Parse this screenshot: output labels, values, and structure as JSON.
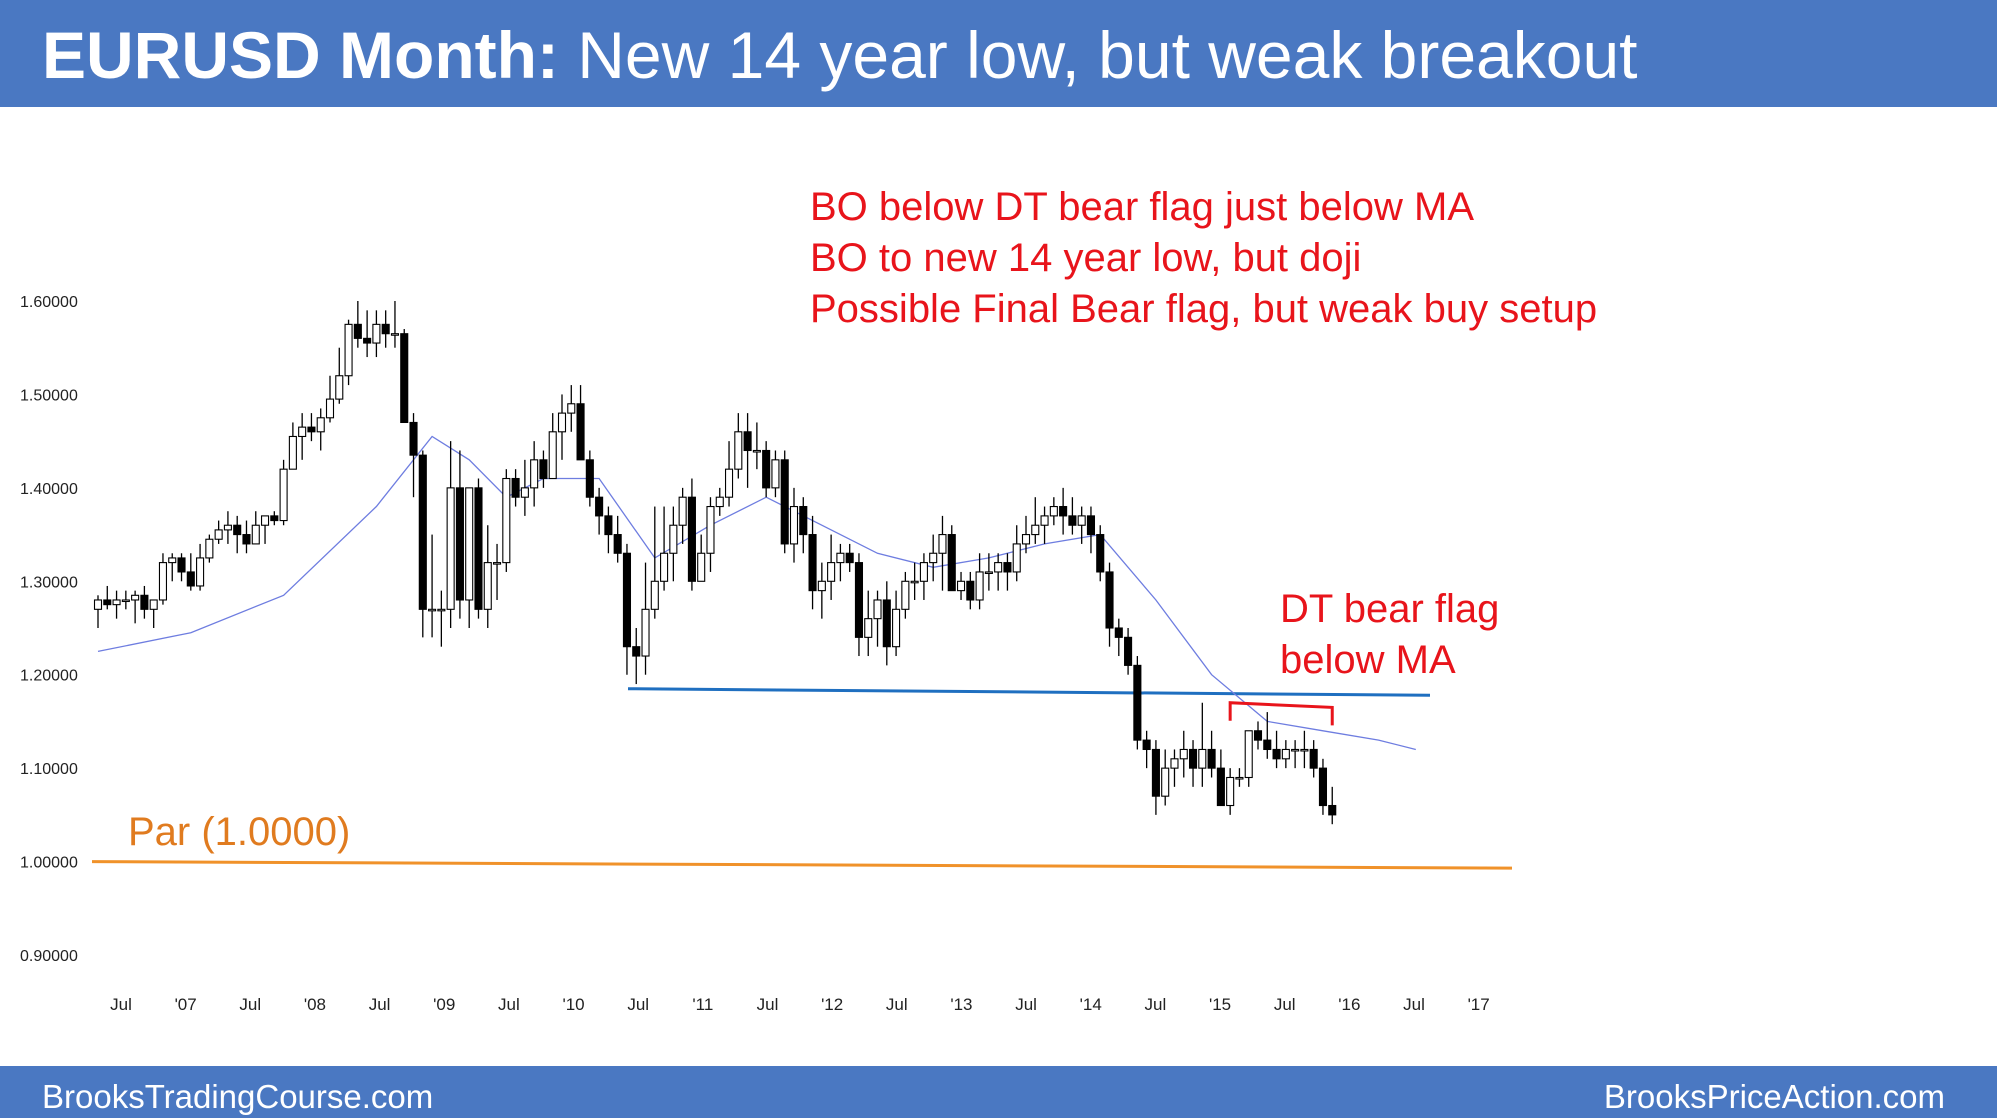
{
  "header": {
    "title_bold": "EURUSD Month:",
    "title_rest": " New 14 year low, but weak breakout"
  },
  "footer": {
    "left": "BrooksTradingCourse.com",
    "right": "BrooksPriceAction.com"
  },
  "colors": {
    "bar": "#4a78c2",
    "annotation": "#e8141b",
    "support": "#1f6fc0",
    "par": "#f0922a",
    "ma": "#6e7de0"
  },
  "annotations": {
    "top": [
      "BO below DT bear flag just below MA",
      "BO to new 14 year low, but doji",
      "Possible Final Bear flag, but weak buy setup"
    ],
    "dt": [
      "DT bear flag",
      "below MA"
    ],
    "par_label": "Par (1.0000)"
  },
  "chart_data": {
    "type": "candlestick",
    "title": "EURUSD Month",
    "y_tick_labels": [
      "1.60000",
      "1.50000",
      "1.40000",
      "1.30000",
      "1.20000",
      "1.10000",
      "1.00000",
      "0.90000"
    ],
    "x_tick_labels": [
      "Jul",
      "'07",
      "Jul",
      "'08",
      "Jul",
      "'09",
      "Jul",
      "'10",
      "Jul",
      "'11",
      "Jul",
      "'12",
      "Jul",
      "'13",
      "Jul",
      "'14",
      "Jul",
      "'15",
      "Jul",
      "'16",
      "Jul",
      "'17"
    ],
    "ylim": [
      0.87,
      1.66
    ],
    "start_month": "2006-05",
    "candles": [
      [
        1.27,
        1.285,
        1.25,
        1.28
      ],
      [
        1.28,
        1.295,
        1.27,
        1.275
      ],
      [
        1.275,
        1.29,
        1.26,
        1.28
      ],
      [
        1.28,
        1.29,
        1.27,
        1.28
      ],
      [
        1.28,
        1.29,
        1.255,
        1.285
      ],
      [
        1.285,
        1.295,
        1.26,
        1.27
      ],
      [
        1.27,
        1.28,
        1.25,
        1.28
      ],
      [
        1.28,
        1.33,
        1.275,
        1.32
      ],
      [
        1.32,
        1.33,
        1.3,
        1.325
      ],
      [
        1.325,
        1.33,
        1.3,
        1.31
      ],
      [
        1.31,
        1.33,
        1.29,
        1.295
      ],
      [
        1.295,
        1.34,
        1.29,
        1.325
      ],
      [
        1.325,
        1.35,
        1.32,
        1.345
      ],
      [
        1.345,
        1.365,
        1.34,
        1.355
      ],
      [
        1.355,
        1.375,
        1.34,
        1.36
      ],
      [
        1.36,
        1.37,
        1.33,
        1.35
      ],
      [
        1.35,
        1.365,
        1.33,
        1.34
      ],
      [
        1.34,
        1.375,
        1.34,
        1.36
      ],
      [
        1.36,
        1.37,
        1.34,
        1.37
      ],
      [
        1.37,
        1.375,
        1.36,
        1.365
      ],
      [
        1.365,
        1.43,
        1.36,
        1.42
      ],
      [
        1.42,
        1.47,
        1.42,
        1.455
      ],
      [
        1.455,
        1.48,
        1.43,
        1.465
      ],
      [
        1.465,
        1.48,
        1.45,
        1.46
      ],
      [
        1.46,
        1.485,
        1.44,
        1.475
      ],
      [
        1.475,
        1.52,
        1.47,
        1.495
      ],
      [
        1.495,
        1.55,
        1.49,
        1.52
      ],
      [
        1.52,
        1.58,
        1.51,
        1.575
      ],
      [
        1.575,
        1.6,
        1.55,
        1.56
      ],
      [
        1.56,
        1.59,
        1.54,
        1.555
      ],
      [
        1.555,
        1.59,
        1.54,
        1.575
      ],
      [
        1.575,
        1.59,
        1.55,
        1.565
      ],
      [
        1.565,
        1.6,
        1.55,
        1.565
      ],
      [
        1.565,
        1.57,
        1.47,
        1.47
      ],
      [
        1.47,
        1.48,
        1.39,
        1.435
      ],
      [
        1.435,
        1.44,
        1.24,
        1.27
      ],
      [
        1.27,
        1.35,
        1.24,
        1.27
      ],
      [
        1.27,
        1.29,
        1.23,
        1.27
      ],
      [
        1.27,
        1.45,
        1.25,
        1.4
      ],
      [
        1.4,
        1.44,
        1.26,
        1.28
      ],
      [
        1.28,
        1.4,
        1.25,
        1.4
      ],
      [
        1.4,
        1.41,
        1.26,
        1.27
      ],
      [
        1.27,
        1.36,
        1.25,
        1.32
      ],
      [
        1.32,
        1.34,
        1.28,
        1.32
      ],
      [
        1.32,
        1.42,
        1.31,
        1.41
      ],
      [
        1.41,
        1.42,
        1.38,
        1.39
      ],
      [
        1.39,
        1.43,
        1.37,
        1.4
      ],
      [
        1.4,
        1.45,
        1.38,
        1.43
      ],
      [
        1.43,
        1.44,
        1.4,
        1.41
      ],
      [
        1.41,
        1.48,
        1.41,
        1.46
      ],
      [
        1.46,
        1.5,
        1.43,
        1.48
      ],
      [
        1.48,
        1.51,
        1.46,
        1.49
      ],
      [
        1.49,
        1.51,
        1.43,
        1.43
      ],
      [
        1.43,
        1.44,
        1.38,
        1.39
      ],
      [
        1.39,
        1.4,
        1.35,
        1.37
      ],
      [
        1.37,
        1.38,
        1.33,
        1.35
      ],
      [
        1.35,
        1.37,
        1.32,
        1.33
      ],
      [
        1.33,
        1.34,
        1.2,
        1.23
      ],
      [
        1.23,
        1.25,
        1.19,
        1.22
      ],
      [
        1.22,
        1.32,
        1.2,
        1.27
      ],
      [
        1.27,
        1.38,
        1.26,
        1.3
      ],
      [
        1.3,
        1.38,
        1.29,
        1.33
      ],
      [
        1.33,
        1.38,
        1.3,
        1.36
      ],
      [
        1.36,
        1.4,
        1.34,
        1.39
      ],
      [
        1.39,
        1.41,
        1.29,
        1.3
      ],
      [
        1.3,
        1.35,
        1.3,
        1.33
      ],
      [
        1.33,
        1.39,
        1.31,
        1.38
      ],
      [
        1.38,
        1.4,
        1.37,
        1.39
      ],
      [
        1.39,
        1.45,
        1.38,
        1.42
      ],
      [
        1.42,
        1.48,
        1.41,
        1.46
      ],
      [
        1.46,
        1.48,
        1.4,
        1.44
      ],
      [
        1.44,
        1.47,
        1.42,
        1.44
      ],
      [
        1.44,
        1.45,
        1.39,
        1.4
      ],
      [
        1.4,
        1.44,
        1.39,
        1.43
      ],
      [
        1.43,
        1.44,
        1.33,
        1.34
      ],
      [
        1.34,
        1.4,
        1.32,
        1.38
      ],
      [
        1.38,
        1.39,
        1.33,
        1.35
      ],
      [
        1.35,
        1.37,
        1.27,
        1.29
      ],
      [
        1.29,
        1.32,
        1.26,
        1.3
      ],
      [
        1.3,
        1.35,
        1.28,
        1.32
      ],
      [
        1.32,
        1.34,
        1.3,
        1.33
      ],
      [
        1.33,
        1.34,
        1.31,
        1.32
      ],
      [
        1.32,
        1.33,
        1.22,
        1.24
      ],
      [
        1.24,
        1.29,
        1.22,
        1.26
      ],
      [
        1.26,
        1.29,
        1.23,
        1.28
      ],
      [
        1.28,
        1.3,
        1.21,
        1.23
      ],
      [
        1.23,
        1.29,
        1.22,
        1.27
      ],
      [
        1.27,
        1.31,
        1.26,
        1.3
      ],
      [
        1.3,
        1.32,
        1.28,
        1.3
      ],
      [
        1.3,
        1.33,
        1.28,
        1.32
      ],
      [
        1.32,
        1.35,
        1.3,
        1.33
      ],
      [
        1.33,
        1.37,
        1.29,
        1.35
      ],
      [
        1.35,
        1.36,
        1.29,
        1.29
      ],
      [
        1.29,
        1.31,
        1.28,
        1.3
      ],
      [
        1.3,
        1.31,
        1.27,
        1.28
      ],
      [
        1.28,
        1.33,
        1.27,
        1.31
      ],
      [
        1.31,
        1.33,
        1.29,
        1.31
      ],
      [
        1.31,
        1.33,
        1.29,
        1.32
      ],
      [
        1.32,
        1.33,
        1.29,
        1.31
      ],
      [
        1.31,
        1.36,
        1.3,
        1.34
      ],
      [
        1.34,
        1.37,
        1.33,
        1.35
      ],
      [
        1.35,
        1.39,
        1.34,
        1.36
      ],
      [
        1.36,
        1.38,
        1.34,
        1.37
      ],
      [
        1.37,
        1.39,
        1.36,
        1.38
      ],
      [
        1.38,
        1.4,
        1.35,
        1.37
      ],
      [
        1.37,
        1.39,
        1.35,
        1.36
      ],
      [
        1.36,
        1.38,
        1.34,
        1.37
      ],
      [
        1.37,
        1.38,
        1.33,
        1.35
      ],
      [
        1.35,
        1.36,
        1.3,
        1.31
      ],
      [
        1.31,
        1.32,
        1.23,
        1.25
      ],
      [
        1.25,
        1.26,
        1.22,
        1.24
      ],
      [
        1.24,
        1.25,
        1.2,
        1.21
      ],
      [
        1.21,
        1.22,
        1.12,
        1.13
      ],
      [
        1.13,
        1.14,
        1.1,
        1.12
      ],
      [
        1.12,
        1.13,
        1.05,
        1.07
      ],
      [
        1.07,
        1.12,
        1.06,
        1.1
      ],
      [
        1.1,
        1.12,
        1.08,
        1.11
      ],
      [
        1.11,
        1.14,
        1.09,
        1.12
      ],
      [
        1.12,
        1.13,
        1.08,
        1.1
      ],
      [
        1.1,
        1.17,
        1.08,
        1.12
      ],
      [
        1.12,
        1.14,
        1.09,
        1.1
      ],
      [
        1.1,
        1.12,
        1.06,
        1.06
      ],
      [
        1.06,
        1.1,
        1.05,
        1.09
      ],
      [
        1.09,
        1.1,
        1.08,
        1.09
      ],
      [
        1.09,
        1.14,
        1.08,
        1.14
      ],
      [
        1.14,
        1.15,
        1.12,
        1.13
      ],
      [
        1.13,
        1.16,
        1.11,
        1.12
      ],
      [
        1.12,
        1.14,
        1.1,
        1.11
      ],
      [
        1.11,
        1.13,
        1.1,
        1.12
      ],
      [
        1.12,
        1.13,
        1.1,
        1.12
      ],
      [
        1.12,
        1.14,
        1.1,
        1.12
      ],
      [
        1.12,
        1.13,
        1.09,
        1.1
      ],
      [
        1.1,
        1.11,
        1.05,
        1.06
      ],
      [
        1.06,
        1.08,
        1.04,
        1.05
      ]
    ],
    "moving_average": [
      [
        0,
        1.225
      ],
      [
        10,
        1.245
      ],
      [
        20,
        1.285
      ],
      [
        30,
        1.38
      ],
      [
        36,
        1.455
      ],
      [
        40,
        1.43
      ],
      [
        44,
        1.39
      ],
      [
        48,
        1.41
      ],
      [
        54,
        1.41
      ],
      [
        60,
        1.325
      ],
      [
        66,
        1.36
      ],
      [
        72,
        1.39
      ],
      [
        78,
        1.36
      ],
      [
        84,
        1.33
      ],
      [
        90,
        1.315
      ],
      [
        96,
        1.325
      ],
      [
        102,
        1.34
      ],
      [
        108,
        1.35
      ],
      [
        114,
        1.28
      ],
      [
        120,
        1.2
      ],
      [
        126,
        1.15
      ],
      [
        132,
        1.14
      ],
      [
        138,
        1.13
      ],
      [
        142,
        1.12
      ]
    ],
    "support_line": {
      "from_value": 1.185,
      "to_value": 1.178
    },
    "dt_line": {
      "value_left": 1.17,
      "value_right": 1.165
    },
    "par_line": {
      "from_value": 1.0,
      "to_value": 0.993
    }
  }
}
